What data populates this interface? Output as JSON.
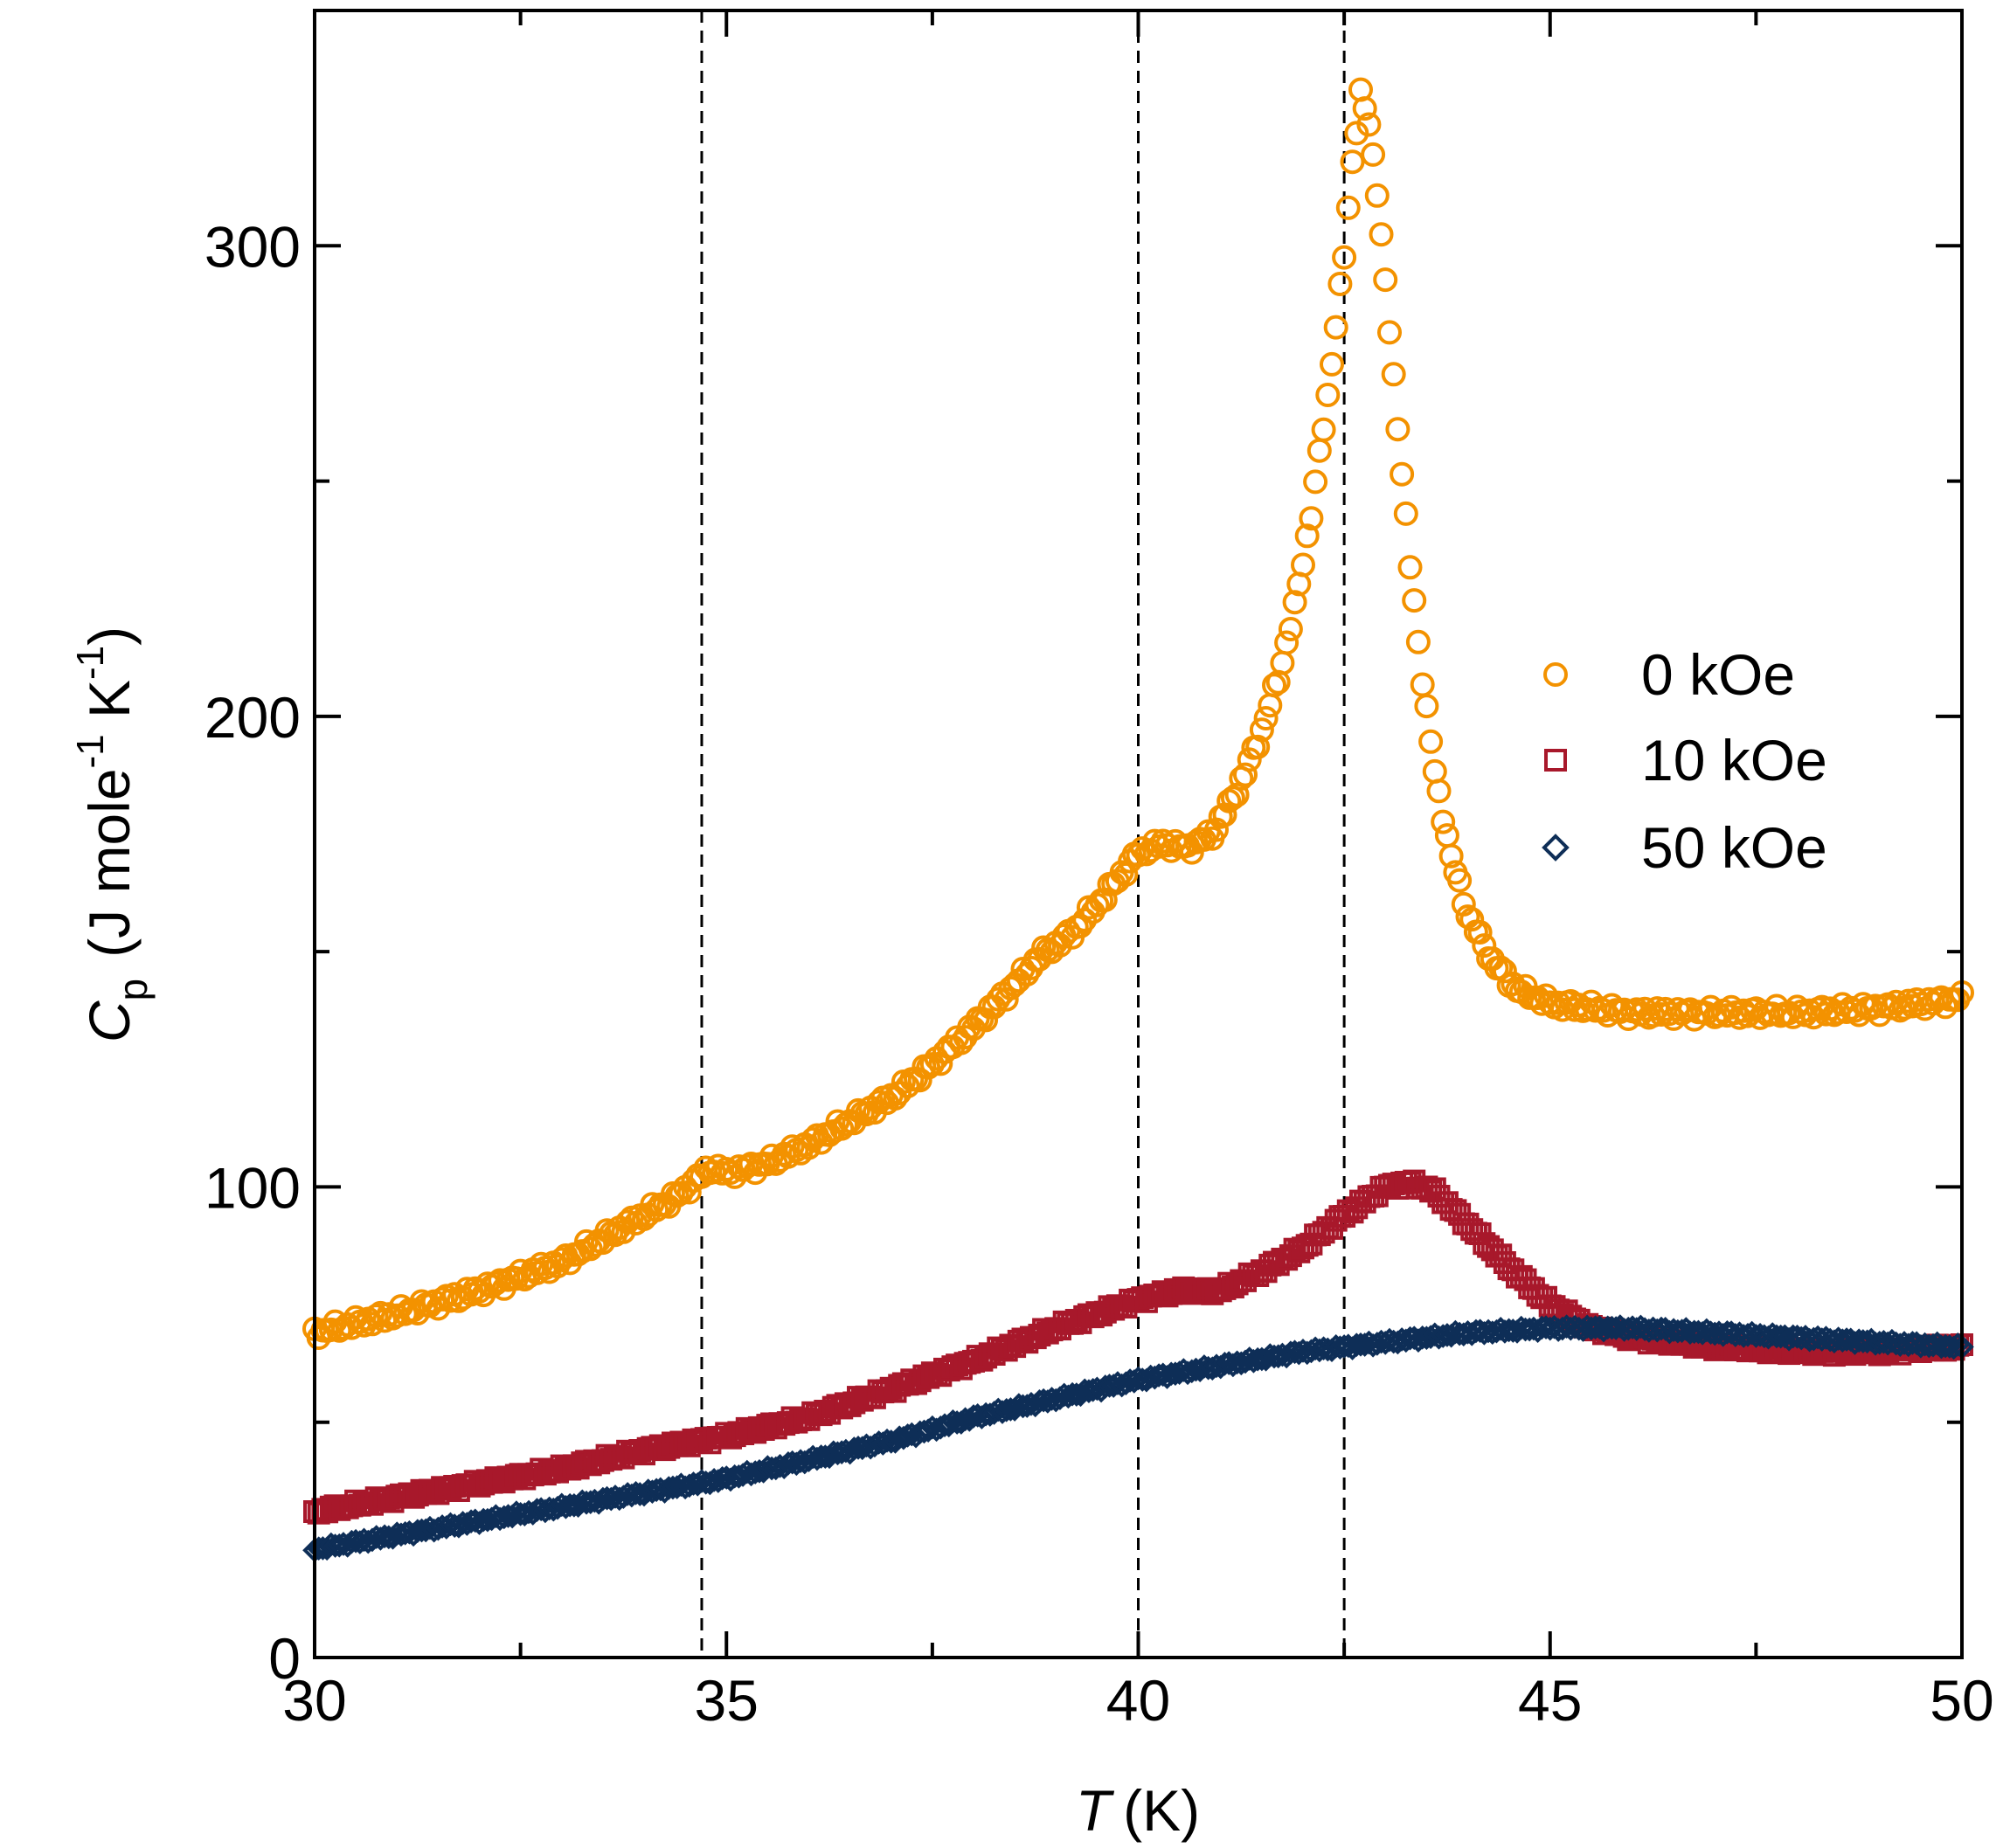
{
  "chart_data": {
    "type": "scatter",
    "xlabel": {
      "symbol": "T",
      "unit": "(K)"
    },
    "ylabel": {
      "symbol": "C",
      "symbol_sub": "p",
      "unit_parts": [
        "(J mole",
        "-1",
        " K",
        "-1",
        ")"
      ]
    },
    "xlim": [
      30,
      50
    ],
    "ylim": [
      0,
      350
    ],
    "x_ticks": [
      30,
      35,
      40,
      45,
      50
    ],
    "y_ticks": [
      0,
      100,
      200,
      300
    ],
    "x_minor_step": 2.5,
    "y_minor_step": 50,
    "reference_lines_x": [
      34.7,
      40.0,
      42.5
    ],
    "legend_position": "center-right",
    "series": [
      {
        "name": "0 kOe",
        "marker": "circle",
        "color": "#F39200",
        "anchors": [
          [
            30.0,
            69
          ],
          [
            31.0,
            73
          ],
          [
            32.0,
            78
          ],
          [
            33.0,
            84
          ],
          [
            33.5,
            89
          ],
          [
            34.0,
            94
          ],
          [
            34.4,
            98
          ],
          [
            34.6,
            101
          ],
          [
            34.8,
            104
          ],
          [
            35.0,
            103
          ],
          [
            35.5,
            105
          ],
          [
            36.0,
            109
          ],
          [
            36.5,
            114
          ],
          [
            37.0,
            119
          ],
          [
            37.5,
            126
          ],
          [
            38.0,
            134
          ],
          [
            38.5,
            143
          ],
          [
            38.8,
            149
          ],
          [
            39.2,
            154
          ],
          [
            39.6,
            162
          ],
          [
            40.0,
            171
          ],
          [
            40.3,
            173
          ],
          [
            40.6,
            172
          ],
          [
            40.9,
            175
          ],
          [
            41.1,
            181
          ],
          [
            41.3,
            188
          ],
          [
            41.5,
            197
          ],
          [
            41.7,
            208
          ],
          [
            41.9,
            223
          ],
          [
            42.1,
            243
          ],
          [
            42.3,
            268
          ],
          [
            42.5,
            298
          ],
          [
            42.6,
            318
          ],
          [
            42.7,
            332
          ],
          [
            42.8,
            326
          ],
          [
            42.9,
            312
          ],
          [
            43.0,
            292
          ],
          [
            43.15,
            262
          ],
          [
            43.3,
            232
          ],
          [
            43.45,
            208
          ],
          [
            43.6,
            188
          ],
          [
            43.8,
            170
          ],
          [
            44.0,
            158
          ],
          [
            44.3,
            148
          ],
          [
            44.6,
            142
          ],
          [
            45.0,
            139
          ],
          [
            46.0,
            137
          ],
          [
            47.0,
            137
          ],
          [
            48.0,
            137
          ],
          [
            49.0,
            138
          ],
          [
            50.0,
            140
          ]
        ]
      },
      {
        "name": "10 kOe",
        "marker": "square",
        "color": "#A8182B",
        "anchors": [
          [
            30.0,
            31
          ],
          [
            31.0,
            34
          ],
          [
            32.0,
            37
          ],
          [
            33.0,
            40
          ],
          [
            34.0,
            44
          ],
          [
            35.0,
            47
          ],
          [
            36.0,
            51
          ],
          [
            37.0,
            57
          ],
          [
            38.0,
            63
          ],
          [
            39.0,
            70
          ],
          [
            39.5,
            73
          ],
          [
            40.0,
            76
          ],
          [
            40.5,
            78
          ],
          [
            41.0,
            78
          ],
          [
            41.5,
            82
          ],
          [
            42.0,
            87
          ],
          [
            42.5,
            94
          ],
          [
            43.0,
            100
          ],
          [
            43.3,
            101
          ],
          [
            43.6,
            99
          ],
          [
            44.0,
            92
          ],
          [
            44.5,
            83
          ],
          [
            45.0,
            75
          ],
          [
            45.5,
            70
          ],
          [
            46.0,
            68
          ],
          [
            47.0,
            66
          ],
          [
            48.0,
            65
          ],
          [
            49.0,
            65
          ],
          [
            50.0,
            66
          ]
        ]
      },
      {
        "name": "50 kOe",
        "marker": "diamond",
        "color": "#0E2E57",
        "anchors": [
          [
            30.0,
            23
          ],
          [
            31.0,
            26
          ],
          [
            32.0,
            29
          ],
          [
            33.0,
            32
          ],
          [
            34.0,
            35
          ],
          [
            35.0,
            38
          ],
          [
            36.0,
            42
          ],
          [
            37.0,
            46
          ],
          [
            38.0,
            51
          ],
          [
            39.0,
            55
          ],
          [
            40.0,
            59
          ],
          [
            41.0,
            62
          ],
          [
            42.0,
            65
          ],
          [
            43.0,
            67
          ],
          [
            44.0,
            69
          ],
          [
            45.0,
            70
          ],
          [
            46.0,
            70
          ],
          [
            47.0,
            69
          ],
          [
            48.0,
            68
          ],
          [
            49.0,
            67
          ],
          [
            50.0,
            66
          ]
        ]
      }
    ]
  }
}
